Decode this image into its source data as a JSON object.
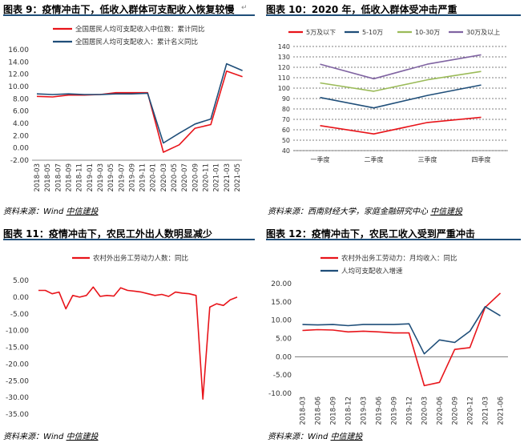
{
  "chart_data": [
    {
      "id": "fig9",
      "type": "line",
      "title": "图表 9：疫情冲击下，低收入群体可支配收入恢复较慢",
      "source_prefix": "资料来源：Wind",
      "source_brand": "中信建投",
      "legend_position": "top",
      "ylim": [
        -2,
        16
      ],
      "yticks": [
        "-2.00",
        "0.00",
        "2.00",
        "4.00",
        "6.00",
        "8.00",
        "10.00",
        "12.00",
        "14.00",
        "16.00"
      ],
      "categories": [
        "2018-03",
        "2018-05",
        "2018-07",
        "2018-09",
        "2018-11",
        "2019-01",
        "2019-03",
        "2019-05",
        "2019-07",
        "2019-09",
        "2019-11",
        "2020-01",
        "2020-03",
        "2020-05",
        "2020-07",
        "2020-09",
        "2020-11",
        "2021-01",
        "2021-03",
        "2021-05"
      ],
      "xtick_labels": [
        "2018-03",
        "2018-05",
        "2018-07",
        "2018-09",
        "2018-11",
        "2019-01",
        "2019-03",
        "2019-05",
        "2019-07",
        "2019-09",
        "2019-11",
        "2020-01",
        "2020-03",
        "2020-05",
        "2020-07",
        "2020-09",
        "2020-11",
        "2021-01",
        "2021-03",
        "2021-05"
      ],
      "series": [
        {
          "name": "全国居民人均可支配收入中位数：累计同比",
          "color": "#e8141a",
          "x": [
            "2018-03",
            "2018-06",
            "2018-09",
            "2018-12",
            "2019-03",
            "2019-06",
            "2019-09",
            "2019-12",
            "2020-03",
            "2020-06",
            "2020-09",
            "2020-12",
            "2021-03",
            "2021-06"
          ],
          "values": [
            8.4,
            8.3,
            8.6,
            8.6,
            8.7,
            9.0,
            9.0,
            9.0,
            -0.7,
            0.5,
            3.2,
            3.8,
            12.5,
            11.6
          ]
        },
        {
          "name": "全国居民人均可支配收入：累计名义同比",
          "color": "#1f4e79",
          "x": [
            "2018-03",
            "2018-06",
            "2018-09",
            "2018-12",
            "2019-03",
            "2019-06",
            "2019-09",
            "2019-12",
            "2020-03",
            "2020-06",
            "2020-09",
            "2020-12",
            "2021-03",
            "2021-06"
          ],
          "values": [
            8.8,
            8.7,
            8.8,
            8.7,
            8.7,
            8.8,
            8.8,
            8.9,
            0.8,
            2.4,
            3.9,
            4.7,
            13.7,
            12.6
          ]
        }
      ]
    },
    {
      "id": "fig10",
      "type": "line",
      "title": "图表 10：2020 年，低收入群体受冲击严重",
      "source_prefix": "资料来源：西南财经大学，家庭金融研究中心",
      "source_brand": "中信建投",
      "legend_position": "top",
      "ylim": [
        40,
        140
      ],
      "yticks": [
        "40",
        "50",
        "60",
        "70",
        "80",
        "90",
        "100",
        "110",
        "120",
        "130",
        "140"
      ],
      "grid": true,
      "categories": [
        "一季度",
        "二季度",
        "三季度",
        "四季度"
      ],
      "series": [
        {
          "name": "5万及以下",
          "color": "#e8141a",
          "values": [
            64,
            56,
            67,
            72
          ]
        },
        {
          "name": "5-10万",
          "color": "#1f4e79",
          "values": [
            91,
            81,
            93,
            103
          ]
        },
        {
          "name": "10-30万",
          "color": "#9bbb59",
          "values": [
            105,
            97,
            108,
            116
          ]
        },
        {
          "name": "30万及以上",
          "color": "#8064a2",
          "values": [
            123,
            109,
            123,
            132
          ]
        }
      ]
    },
    {
      "id": "fig11",
      "type": "line",
      "title": "图表 11：疫情冲击下，农民工外出人数明显减少",
      "source_prefix": "资料来源：Wind",
      "source_brand": "中信建投",
      "legend_position": "top",
      "ylim": [
        -35,
        5
      ],
      "yticks": [
        "-35.00",
        "-30.00",
        "-25.00",
        "-20.00",
        "-15.00",
        "-10.00",
        "-5.00",
        "0.00",
        "5.00"
      ],
      "series": [
        {
          "name": "农村外出务工劳动力人数：同比",
          "color": "#e8141a",
          "values": [
            2.0,
            2.0,
            1.0,
            1.5,
            -3.5,
            0.5,
            0.0,
            0.5,
            3.0,
            0.2,
            0.5,
            0.3,
            2.8,
            2.0,
            1.8,
            1.5,
            1.0,
            0.5,
            0.8,
            0.2,
            1.5,
            1.2,
            1.0,
            0.5,
            -30.5,
            -3.0,
            -2.0,
            -2.5,
            -0.8,
            0.0
          ]
        }
      ]
    },
    {
      "id": "fig12",
      "type": "line",
      "title": "图表 12：疫情冲击下，农民工收入受到严重冲击",
      "source_prefix": "资料来源：Wind",
      "source_brand": "中信建投",
      "legend_position": "top",
      "ylim": [
        -10,
        20
      ],
      "yticks": [
        "-10.00",
        "-5.00",
        "0.00",
        "5.00",
        "10.00",
        "15.00",
        "20.00"
      ],
      "categories": [
        "2018-03",
        "2018-06",
        "2018-09",
        "2018-12",
        "2019-03",
        "2019-06",
        "2019-09",
        "2019-12",
        "2020-03",
        "2020-06",
        "2020-09",
        "2020-12",
        "2021-03",
        "2021-06"
      ],
      "series": [
        {
          "name": "农村外出务工劳动力：月均收入：同比",
          "color": "#e8141a",
          "values": [
            7.2,
            7.4,
            7.3,
            6.8,
            7.0,
            6.8,
            6.5,
            6.5,
            -7.9,
            -7.0,
            2.0,
            2.5,
            13.5,
            17.4
          ]
        },
        {
          "name": "人均可支配收入增速",
          "color": "#1f4e79",
          "values": [
            8.8,
            8.7,
            8.8,
            8.5,
            8.8,
            8.8,
            8.8,
            9.0,
            0.8,
            4.6,
            3.9,
            7.0,
            13.7,
            11.2
          ]
        }
      ]
    }
  ]
}
